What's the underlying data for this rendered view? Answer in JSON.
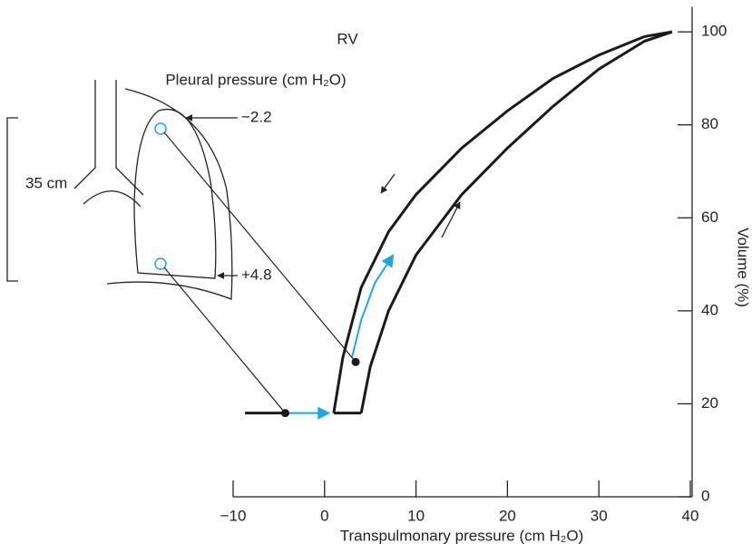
{
  "chart_data": {
    "type": "line",
    "title": "RV",
    "x_label": "Transpulmonary pressure (cm H₂O)",
    "y_label": "Volume (%)",
    "annotations": [
      "Pleural pressure (cm H₂O)",
      "−2.2",
      "+4.8",
      "35 cm"
    ],
    "xlim": [
      -10,
      40
    ],
    "ylim": [
      0,
      105
    ],
    "xticks": [
      {
        "value": -10,
        "label": "−10"
      },
      0,
      10,
      20,
      30,
      40
    ],
    "yticks": [
      0,
      20,
      40,
      60,
      80,
      100
    ],
    "series": [
      {
        "color": "#1a1a1a",
        "x": [
          1,
          2,
          4,
          7,
          10,
          15,
          20,
          25,
          30,
          35,
          38
        ],
        "values": [
          18,
          30,
          45,
          57,
          65,
          75,
          83,
          90,
          95,
          99,
          100
        ]
      },
      {
        "color": "#1a1a1a",
        "x": [
          4,
          5,
          7,
          10,
          15,
          20,
          25,
          30,
          35,
          38
        ],
        "values": [
          18,
          28,
          40,
          52,
          65,
          75,
          84,
          92,
          98,
          100
        ]
      },
      {
        "color": "#1a1a1a",
        "x": [
          1,
          4
        ],
        "values": [
          18,
          18
        ]
      },
      {
        "color": "#1a1a1a",
        "x": [
          -8.7,
          -4.3
        ],
        "values": [
          18,
          18
        ]
      },
      {
        "color": "#1ea7e1",
        "x": [
          -4.3,
          0.5
        ],
        "values": [
          18,
          18
        ]
      },
      {
        "color": "#1ea7e1",
        "x": [
          3,
          4,
          5.5,
          7.5
        ],
        "values": [
          30,
          38,
          46,
          52
        ]
      }
    ],
    "points": {
      "color": "#1a1a1a",
      "x": [
        -4.3,
        3.4
      ],
      "values": [
        18,
        29
      ]
    }
  }
}
